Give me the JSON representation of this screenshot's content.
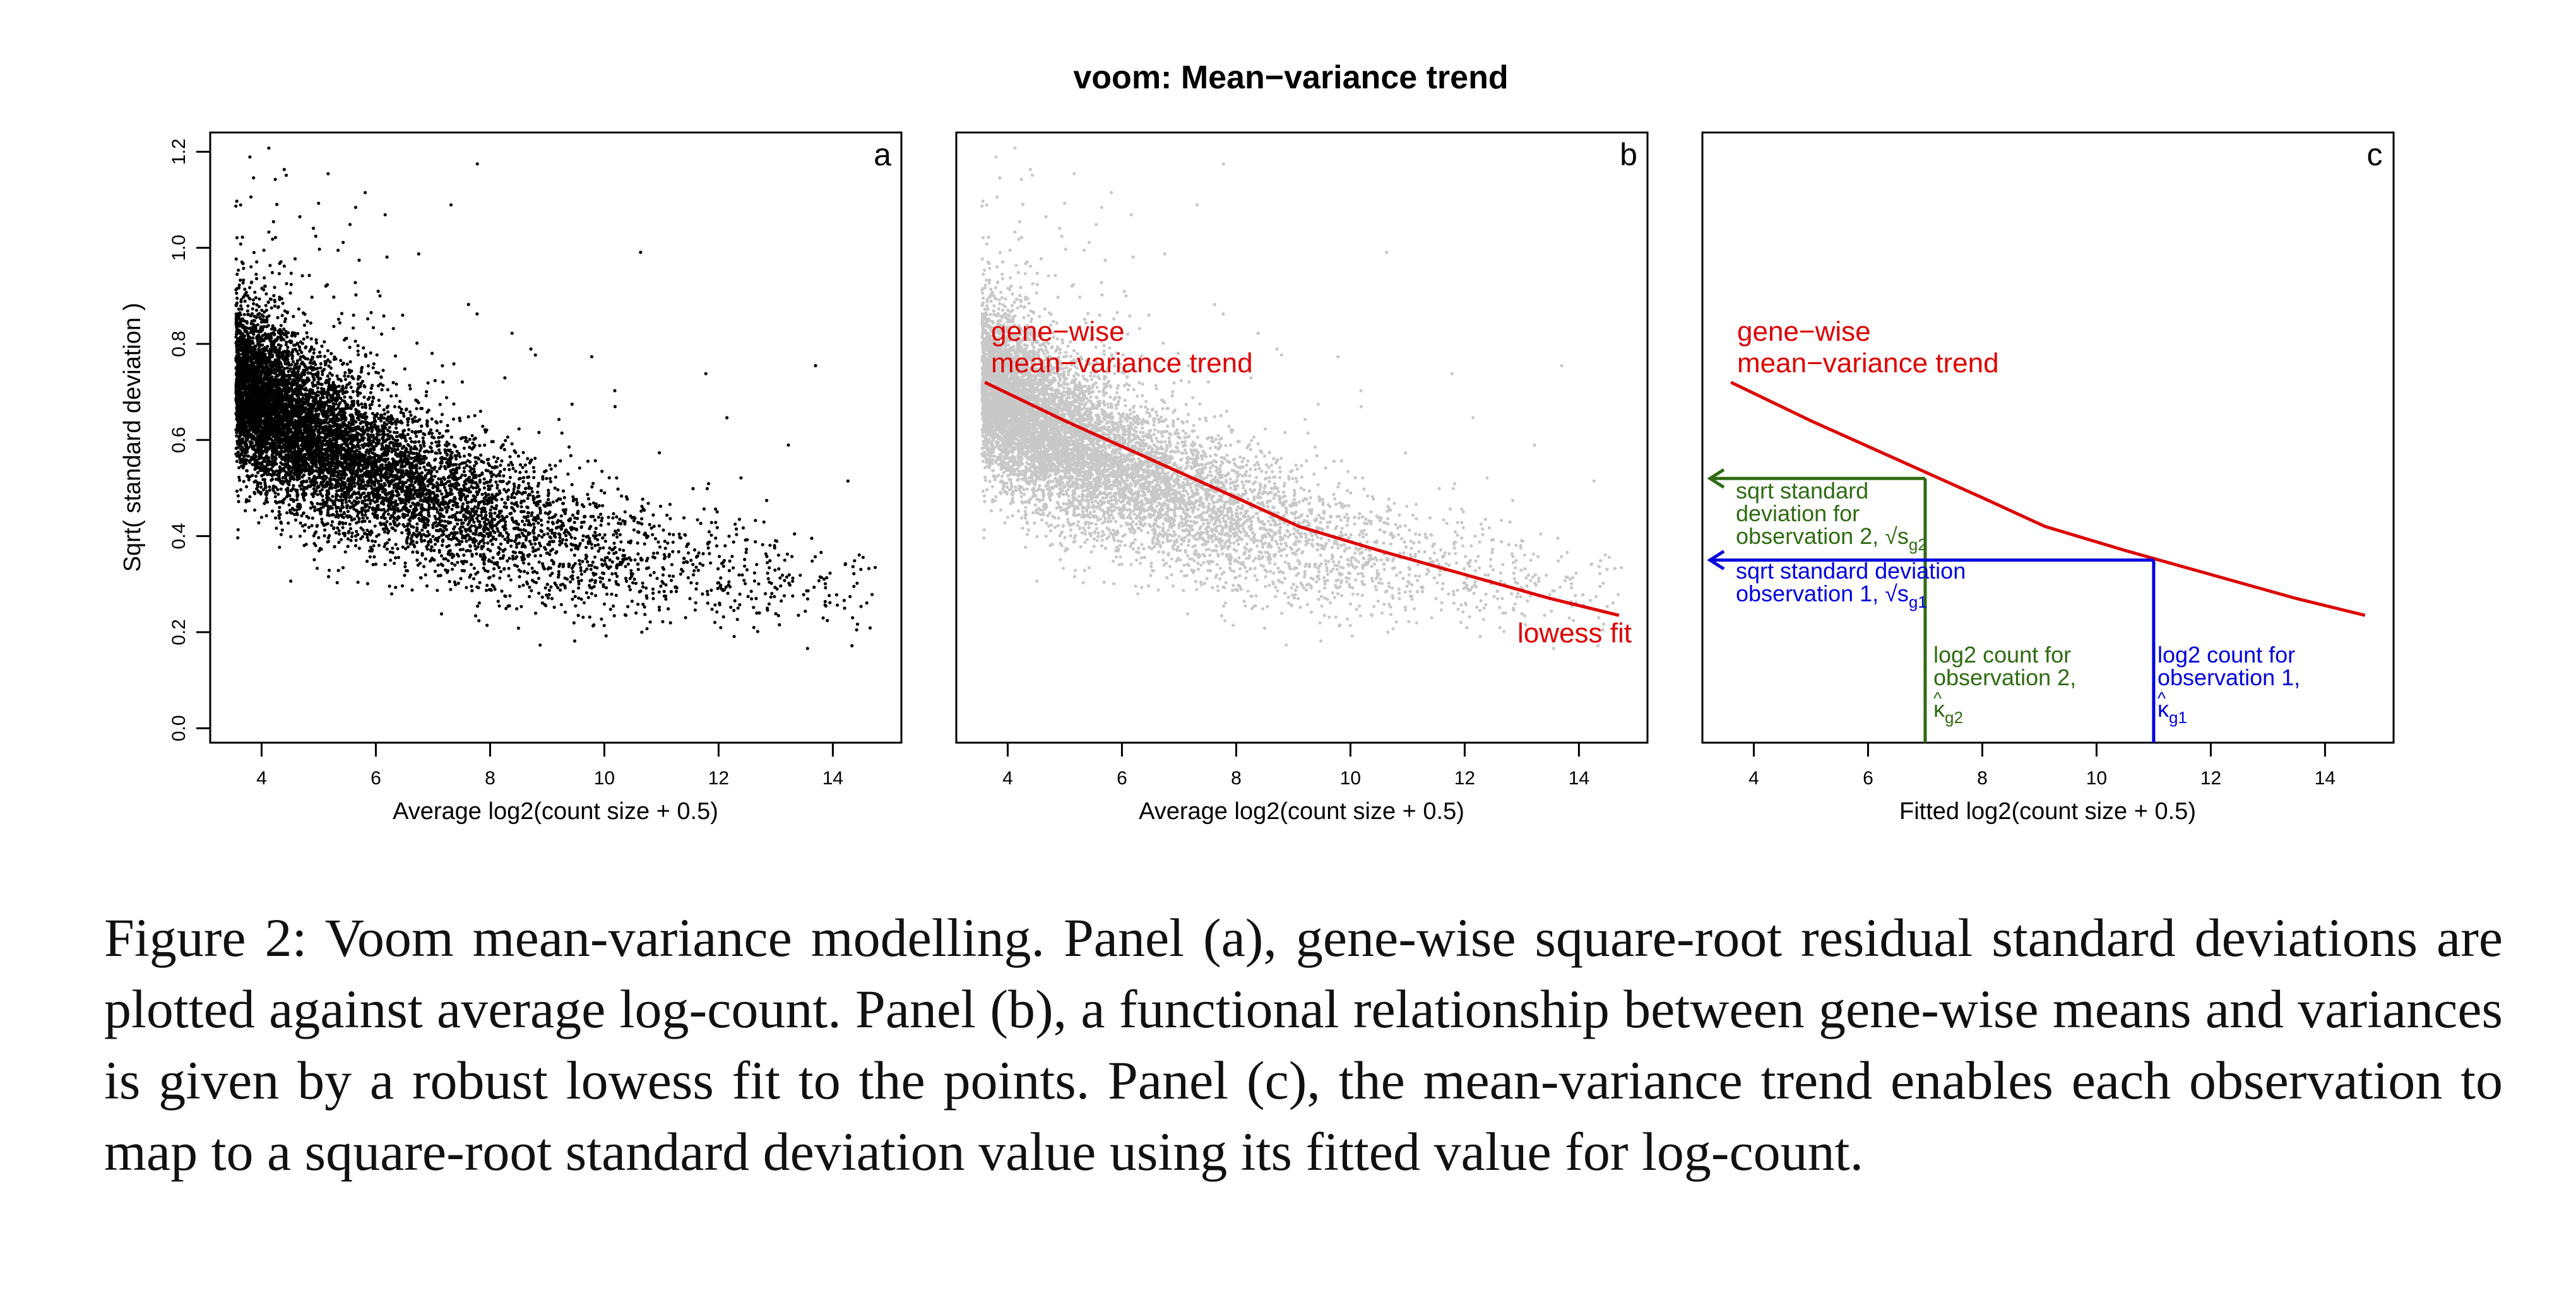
{
  "figure_title": "voom: Mean−variance trend",
  "caption": "Figure 2: Voom mean-variance modelling. Panel (a), gene-wise square-root residual standard deviations are plotted against average log-count. Panel (b), a functional relationship between gene-wise means and variances is given by a robust lowess fit to the points. Panel (c), the mean-variance trend enables each observation to map to a square-root standard deviation value using its fitted value for log-count.",
  "colors": {
    "points_a": "#000000",
    "points_b": "#c8c8c8",
    "trend": "#dd0000",
    "obs2": "#2e6b12",
    "obs1": "#0000dd"
  },
  "chart_data": [
    {
      "type": "scatter",
      "panel_letter": "a",
      "xlabel": "Average log2(count size + 0.5)",
      "ylabel": "Sqrt( standard deviation )",
      "xlim": [
        3.1,
        15.2
      ],
      "ylim": [
        -0.03,
        1.24
      ],
      "xticks": [
        "4",
        "6",
        "8",
        "10",
        "12",
        "14"
      ],
      "yticks": [
        "0.0",
        "0.2",
        "0.4",
        "0.6",
        "0.8",
        "1.0",
        "1.2"
      ],
      "point_cloud": {
        "x_range": [
          3.5,
          14.8
        ],
        "n_points": 9000,
        "trend": "decreasing from ~0.72 at x=3.6 to ~0.24 at x=14.7"
      }
    },
    {
      "type": "scatter",
      "panel_letter": "b",
      "xlabel": "Average log2(count size + 0.5)",
      "xlim": [
        3.1,
        15.2
      ],
      "ylim": [
        -0.03,
        1.24
      ],
      "xticks": [
        "4",
        "6",
        "8",
        "10",
        "12",
        "14"
      ],
      "annotation_trend_line1": "gene−wise",
      "annotation_trend_line2": "mean−variance trend",
      "annotation_fit": "lowess fit",
      "lowess": {
        "x": [
          3.6,
          5,
          6.5,
          8,
          9.1,
          10.5,
          12,
          13.5,
          14.7
        ],
        "y": [
          0.72,
          0.64,
          0.56,
          0.48,
          0.42,
          0.37,
          0.32,
          0.27,
          0.235
        ]
      }
    },
    {
      "type": "line",
      "panel_letter": "c",
      "xlabel": "Fitted log2(count size + 0.5)",
      "xlim": [
        3.1,
        15.2
      ],
      "ylim": [
        -0.03,
        1.24
      ],
      "xticks": [
        "4",
        "6",
        "8",
        "10",
        "12",
        "14"
      ],
      "annotation_trend_line1": "gene−wise",
      "annotation_trend_line2": "mean−variance trend",
      "trend": {
        "x": [
          3.6,
          5,
          6.5,
          8,
          9.1,
          10.5,
          12,
          13.5,
          14.7
        ],
        "y": [
          0.72,
          0.64,
          0.56,
          0.48,
          0.42,
          0.37,
          0.32,
          0.27,
          0.235
        ]
      },
      "observation_2": {
        "x": 7.0,
        "y": 0.52,
        "sd_label": [
          "sqrt standard",
          "deviation for",
          "observation 2, √s",
          "g2"
        ],
        "count_label": [
          "log2 count for",
          "observation 2,",
          "κ",
          "g2"
        ]
      },
      "observation_1": {
        "x": 11.0,
        "y": 0.35,
        "sd_label": [
          "sqrt standard deviation",
          "observation 1, √s",
          "g1"
        ],
        "count_label": [
          "log2 count for",
          "observation 1,",
          "κ",
          "g1"
        ]
      }
    }
  ]
}
